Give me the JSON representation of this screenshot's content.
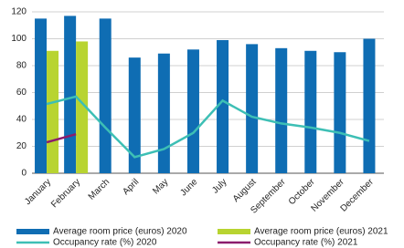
{
  "chart_data": {
    "type": "bar",
    "categories": [
      "January",
      "February",
      "March",
      "April",
      "May",
      "June",
      "July",
      "August",
      "September",
      "October",
      "November",
      "December"
    ],
    "series": [
      {
        "name": "Average room price (euros) 2020",
        "type": "bar",
        "color": "#0f6db3",
        "values": [
          115,
          117,
          115,
          86,
          89,
          92,
          99,
          96,
          93,
          91,
          90,
          100
        ]
      },
      {
        "name": "Average room price (euros) 2021",
        "type": "bar",
        "color": "#b8d431",
        "values": [
          91,
          98,
          null,
          null,
          null,
          null,
          null,
          null,
          null,
          null,
          null,
          null
        ]
      },
      {
        "name": "Occupancy rate (%) 2020",
        "type": "line",
        "color": "#3dbfb5",
        "values": [
          51.5,
          57,
          34,
          12,
          18,
          30,
          54,
          42,
          37,
          34,
          30,
          24
        ]
      },
      {
        "name": "Occupancy rate (%) 2021",
        "type": "line",
        "color": "#8b1c6d",
        "values": [
          23,
          29,
          null,
          null,
          null,
          null,
          null,
          null,
          null,
          null,
          null,
          null
        ]
      }
    ],
    "ylim": [
      0,
      120
    ],
    "yticks": [
      0,
      20,
      40,
      60,
      80,
      100,
      120
    ],
    "grid": true
  }
}
